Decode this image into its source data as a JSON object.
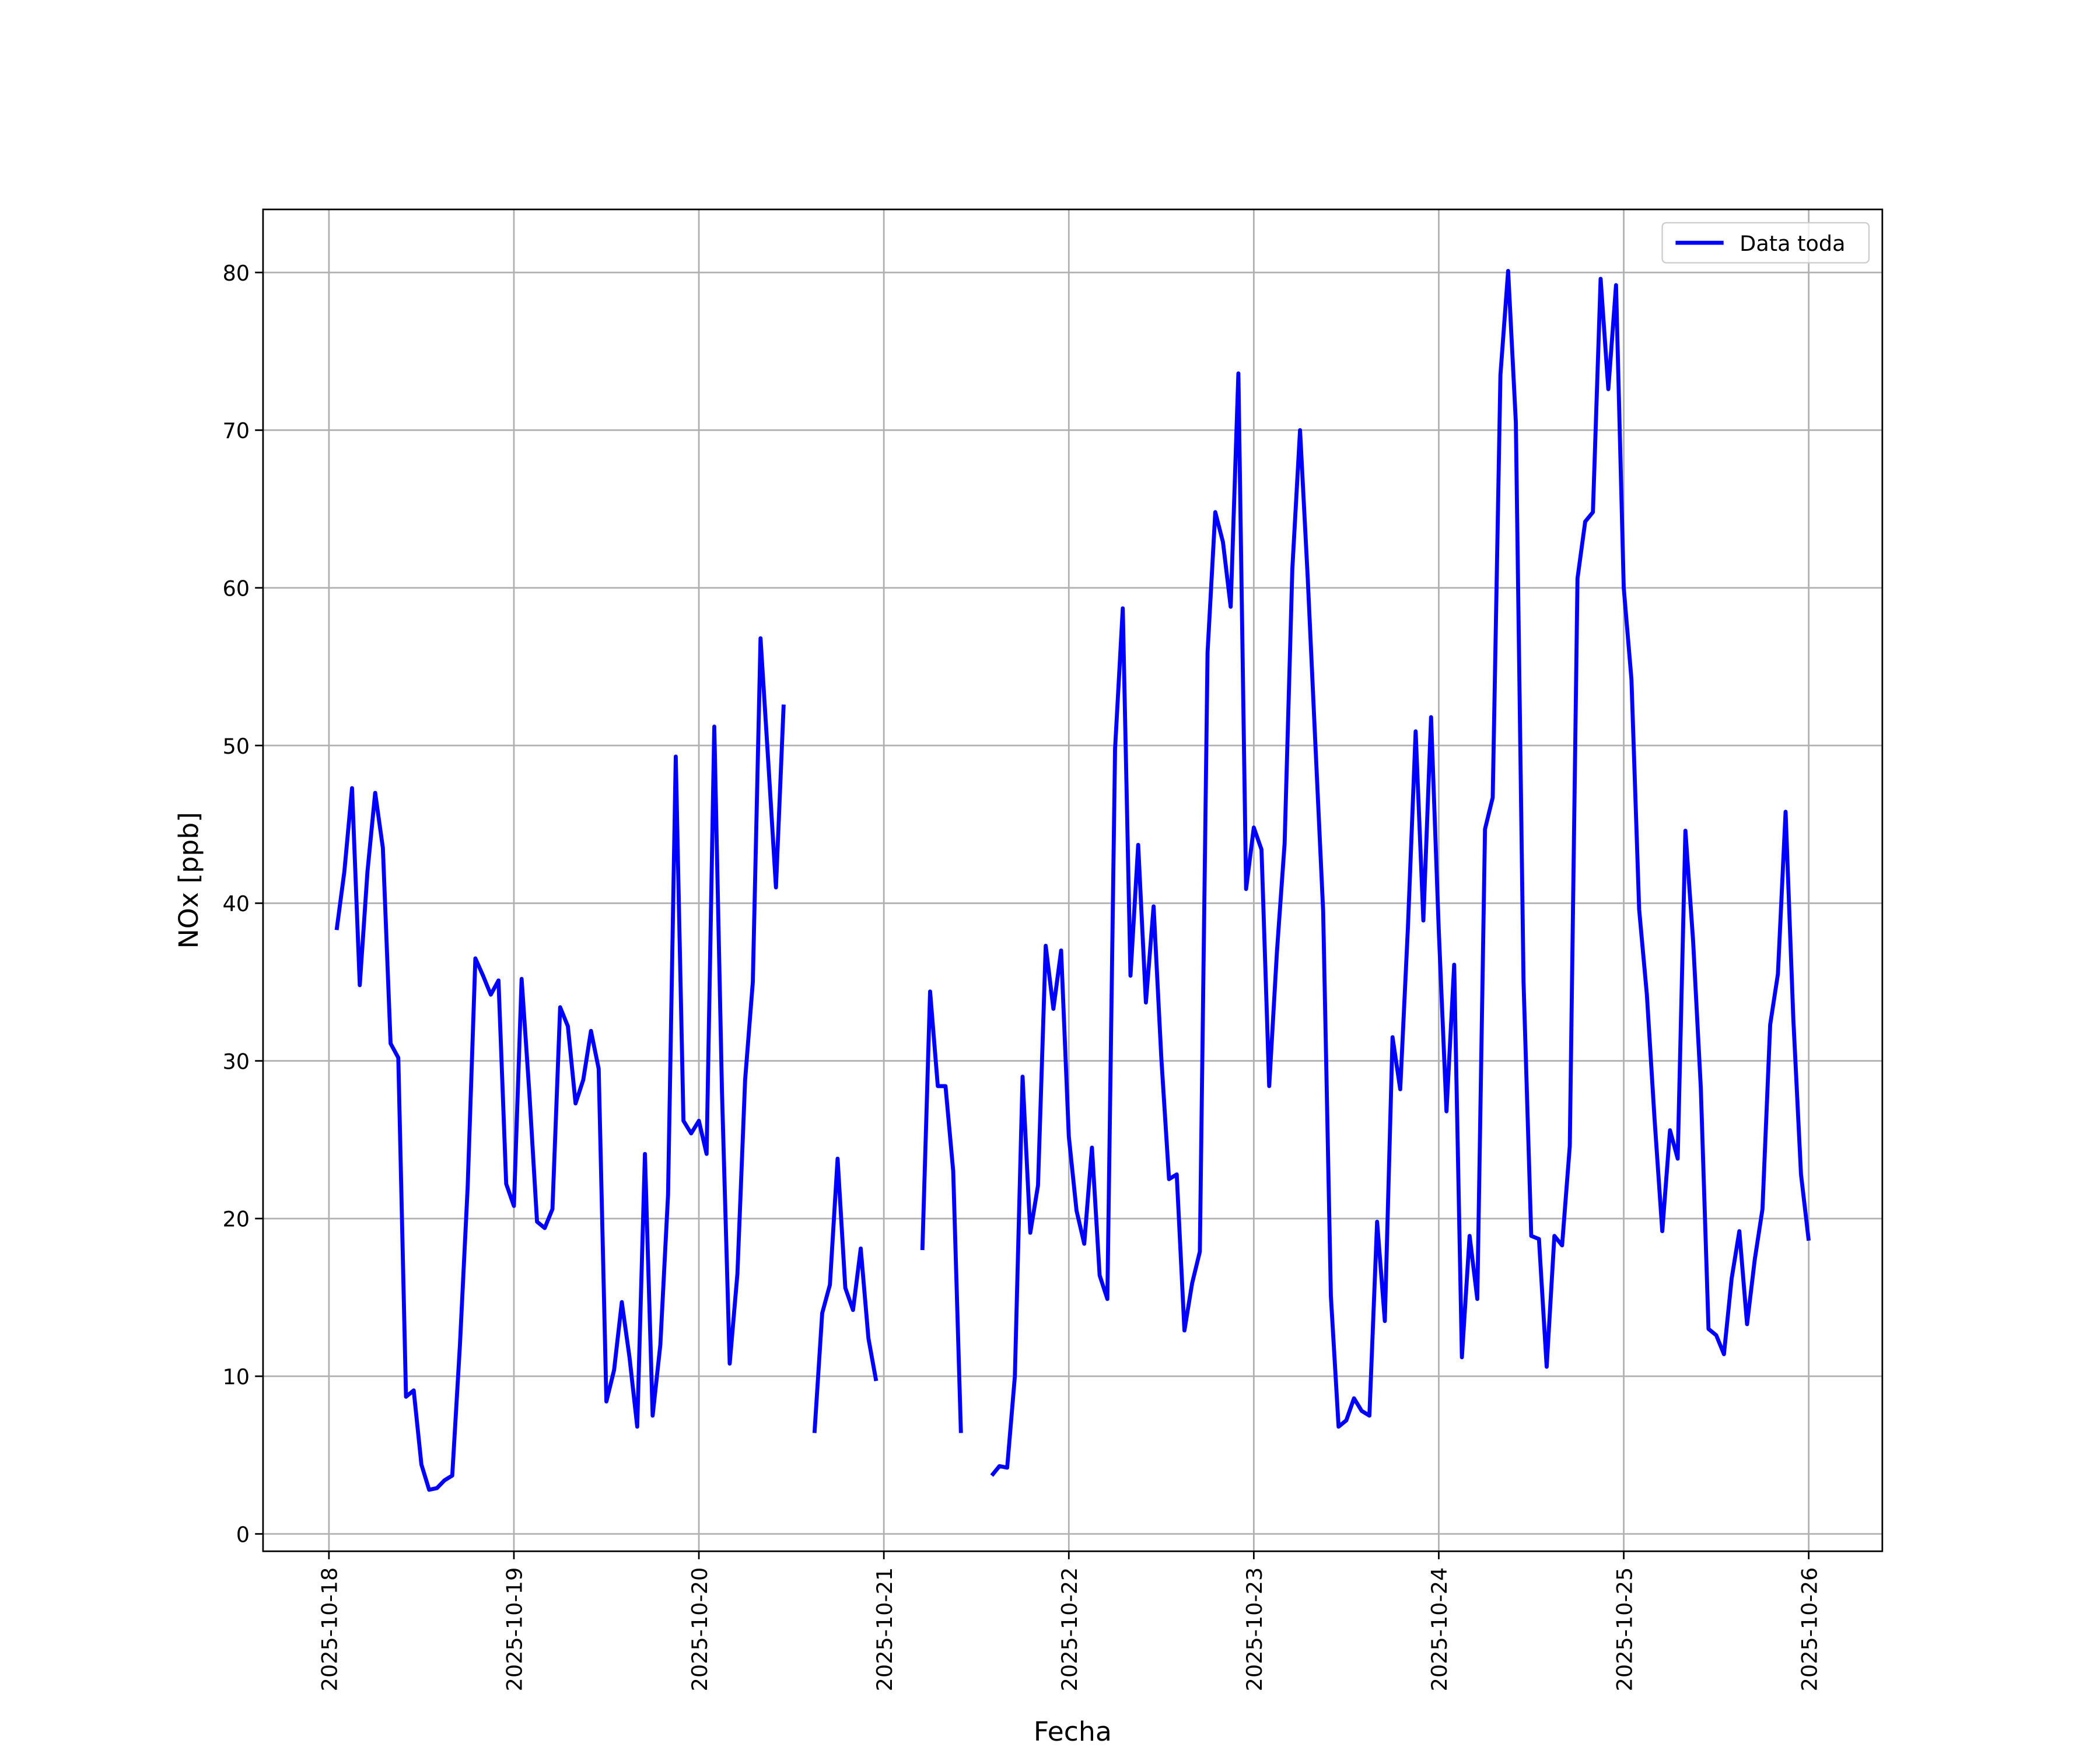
{
  "chart_data": {
    "type": "line",
    "xlabel": "Fecha",
    "ylabel": "NOx [ppb]",
    "x": [
      "2025-10-18 01:00",
      "2025-10-18 02:00",
      "2025-10-18 03:00",
      "2025-10-18 04:00",
      "2025-10-18 05:00",
      "2025-10-18 06:00",
      "2025-10-18 07:00",
      "2025-10-18 08:00",
      "2025-10-18 09:00",
      "2025-10-18 10:00",
      "2025-10-18 11:00",
      "2025-10-18 12:00",
      "2025-10-18 13:00",
      "2025-10-18 14:00",
      "2025-10-18 15:00",
      "2025-10-18 16:00",
      "2025-10-18 17:00",
      "2025-10-18 18:00",
      "2025-10-18 19:00",
      "2025-10-18 20:00",
      "2025-10-18 21:00",
      "2025-10-18 22:00",
      "2025-10-18 23:00",
      "2025-10-19 00:00",
      "2025-10-19 01:00",
      "2025-10-19 02:00",
      "2025-10-19 03:00",
      "2025-10-19 04:00",
      "2025-10-19 05:00",
      "2025-10-19 06:00",
      "2025-10-19 07:00",
      "2025-10-19 08:00",
      "2025-10-19 09:00",
      "2025-10-19 10:00",
      "2025-10-19 11:00",
      "2025-10-19 12:00",
      "2025-10-19 13:00",
      "2025-10-19 14:00",
      "2025-10-19 15:00",
      "2025-10-19 16:00",
      "2025-10-19 17:00",
      "2025-10-19 18:00",
      "2025-10-19 19:00",
      "2025-10-19 20:00",
      "2025-10-19 21:00",
      "2025-10-19 22:00",
      "2025-10-19 23:00",
      "2025-10-20 00:00",
      "2025-10-20 01:00",
      "2025-10-20 02:00",
      "2025-10-20 03:00",
      "2025-10-20 04:00",
      "2025-10-20 05:00",
      "2025-10-20 06:00",
      "2025-10-20 07:00",
      "2025-10-20 08:00",
      "2025-10-20 09:00",
      "2025-10-20 10:00",
      "2025-10-20 11:00",
      "2025-10-20 12:00",
      "2025-10-20 13:00",
      "2025-10-20 14:00",
      "2025-10-20 15:00",
      "2025-10-20 16:00",
      "2025-10-20 17:00",
      "2025-10-20 18:00",
      "2025-10-20 19:00",
      "2025-10-20 20:00",
      "2025-10-20 21:00",
      "2025-10-20 22:00",
      "2025-10-20 23:00",
      "2025-10-21 00:00",
      "2025-10-21 01:00",
      "2025-10-21 02:00",
      "2025-10-21 03:00",
      "2025-10-21 04:00",
      "2025-10-21 05:00",
      "2025-10-21 06:00",
      "2025-10-21 07:00",
      "2025-10-21 08:00",
      "2025-10-21 09:00",
      "2025-10-21 10:00",
      "2025-10-21 11:00",
      "2025-10-21 12:00",
      "2025-10-21 13:00",
      "2025-10-21 14:00",
      "2025-10-21 15:00",
      "2025-10-21 16:00",
      "2025-10-21 17:00",
      "2025-10-21 18:00",
      "2025-10-21 19:00",
      "2025-10-21 20:00",
      "2025-10-21 21:00",
      "2025-10-21 22:00",
      "2025-10-21 23:00",
      "2025-10-22 00:00",
      "2025-10-22 01:00",
      "2025-10-22 02:00",
      "2025-10-22 03:00",
      "2025-10-22 04:00",
      "2025-10-22 05:00",
      "2025-10-22 06:00",
      "2025-10-22 07:00",
      "2025-10-22 08:00",
      "2025-10-22 09:00",
      "2025-10-22 10:00",
      "2025-10-22 11:00",
      "2025-10-22 12:00",
      "2025-10-22 13:00",
      "2025-10-22 14:00",
      "2025-10-22 15:00",
      "2025-10-22 16:00",
      "2025-10-22 17:00",
      "2025-10-22 18:00",
      "2025-10-22 19:00",
      "2025-10-22 20:00",
      "2025-10-22 21:00",
      "2025-10-22 22:00",
      "2025-10-22 23:00",
      "2025-10-23 00:00",
      "2025-10-23 01:00",
      "2025-10-23 02:00",
      "2025-10-23 03:00",
      "2025-10-23 04:00",
      "2025-10-23 05:00",
      "2025-10-23 06:00",
      "2025-10-23 07:00",
      "2025-10-23 08:00",
      "2025-10-23 09:00",
      "2025-10-23 10:00",
      "2025-10-23 11:00",
      "2025-10-23 12:00",
      "2025-10-23 13:00",
      "2025-10-23 14:00",
      "2025-10-23 15:00",
      "2025-10-23 16:00",
      "2025-10-23 17:00",
      "2025-10-23 18:00",
      "2025-10-23 19:00",
      "2025-10-23 20:00",
      "2025-10-23 21:00",
      "2025-10-23 22:00",
      "2025-10-23 23:00",
      "2025-10-24 00:00",
      "2025-10-24 01:00",
      "2025-10-24 02:00",
      "2025-10-24 03:00",
      "2025-10-24 04:00",
      "2025-10-24 05:00",
      "2025-10-24 06:00",
      "2025-10-24 07:00",
      "2025-10-24 08:00",
      "2025-10-24 09:00",
      "2025-10-24 10:00",
      "2025-10-24 11:00",
      "2025-10-24 12:00",
      "2025-10-24 13:00",
      "2025-10-24 14:00",
      "2025-10-24 15:00",
      "2025-10-24 16:00",
      "2025-10-24 17:00",
      "2025-10-24 18:00",
      "2025-10-24 19:00",
      "2025-10-24 20:00",
      "2025-10-24 21:00",
      "2025-10-24 22:00",
      "2025-10-24 23:00",
      "2025-10-25 00:00",
      "2025-10-25 01:00",
      "2025-10-25 02:00",
      "2025-10-25 03:00",
      "2025-10-25 04:00",
      "2025-10-25 05:00",
      "2025-10-25 06:00",
      "2025-10-25 07:00",
      "2025-10-25 08:00",
      "2025-10-25 09:00",
      "2025-10-25 10:00",
      "2025-10-25 11:00",
      "2025-10-25 12:00",
      "2025-10-25 13:00",
      "2025-10-25 14:00",
      "2025-10-25 15:00",
      "2025-10-25 16:00",
      "2025-10-25 17:00",
      "2025-10-25 18:00",
      "2025-10-25 19:00",
      "2025-10-25 20:00",
      "2025-10-25 21:00",
      "2025-10-25 22:00",
      "2025-10-25 23:00",
      "2025-10-26 00:00"
    ],
    "series": [
      {
        "name": "Data toda",
        "color": "#0000ff",
        "values": [
          38.3,
          42,
          47.3,
          34.8,
          42,
          47,
          43.5,
          31.1,
          30.2,
          8.7,
          9.1,
          4.4,
          2.8,
          2.9,
          3.4,
          3.7,
          12,
          22,
          36.5,
          35.4,
          34.2,
          35.1,
          22.2,
          20.8,
          35.2,
          28,
          19.8,
          19.4,
          20.6,
          33.4,
          32.2,
          27.3,
          28.8,
          31.9,
          29.5,
          8.4,
          10.4,
          14.7,
          11.2,
          6.8,
          24.1,
          7.5,
          12,
          21.5,
          49.3,
          26.2,
          25.4,
          26.2,
          24.1,
          51.2,
          28,
          10.8,
          16.5,
          28.8,
          35,
          56.8,
          49,
          41,
          52.6,
          null,
          null,
          null,
          6.4,
          14,
          15.8,
          23.8,
          15.6,
          14.2,
          18.1,
          12.4,
          9.7,
          null,
          null,
          null,
          null,
          null,
          18,
          34.4,
          28.4,
          28.4,
          23,
          6.4,
          null,
          null,
          null,
          3.7,
          4.3,
          4.2,
          10,
          29,
          19.1,
          22.1,
          37.3,
          33.3,
          37,
          25.2,
          20.5,
          18.4,
          24.5,
          16.4,
          14.9,
          49.8,
          58.7,
          35.4,
          43.7,
          33.7,
          39.8,
          30.2,
          22.5,
          22.8,
          12.9,
          15.9,
          17.9,
          55.9,
          64.8,
          62.9,
          58.8,
          73.6,
          40.9,
          44.8,
          43.4,
          28.4,
          36.9,
          43.8,
          61.2,
          70,
          60.6,
          50,
          39.5,
          15.1,
          6.8,
          7.2,
          8.6,
          7.8,
          7.5,
          19.8,
          13.5,
          31.5,
          28.2,
          38.5,
          50.9,
          38.9,
          51.8,
          38.3,
          26.8,
          36.1,
          11.2,
          18.9,
          14.9,
          44.7,
          46.7,
          73.5,
          80.1,
          70.5,
          35,
          18.9,
          18.7,
          10.6,
          18.9,
          18.3,
          24.6,
          60.6,
          64.2,
          64.8,
          79.6,
          72.6,
          79.2,
          60,
          54.2,
          39.6,
          34.2,
          26.3,
          19.2,
          25.6,
          23.8,
          44.6,
          37.6,
          28.3,
          13,
          12.6,
          11.4,
          16.2,
          19.2,
          13.3,
          17.4,
          20.6,
          32.3,
          35.5,
          45.8,
          32.7,
          22.8,
          18.6
        ]
      }
    ],
    "xlim": [
      "2025-10-17 15:27",
      "2025-10-26 09:33"
    ],
    "xticks": [
      "2025-10-18",
      "2025-10-19",
      "2025-10-20",
      "2025-10-21",
      "2025-10-22",
      "2025-10-23",
      "2025-10-24",
      "2025-10-25",
      "2025-10-26"
    ],
    "ylim": [
      -1.1,
      84.0
    ],
    "yticks": [
      0,
      10,
      20,
      30,
      40,
      50,
      60,
      70,
      80
    ],
    "grid": true,
    "legend": "upper right"
  }
}
